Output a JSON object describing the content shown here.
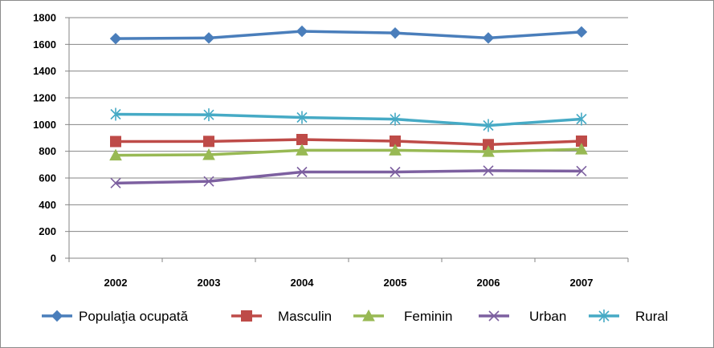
{
  "chart_data": {
    "type": "line",
    "title": "",
    "xlabel": "",
    "ylabel": "",
    "categories": [
      "2002",
      "2003",
      "2004",
      "2005",
      "2006",
      "2007"
    ],
    "ylim": [
      0,
      1800
    ],
    "yticks": [
      0,
      200,
      400,
      600,
      800,
      1000,
      1200,
      1400,
      1600,
      1800
    ],
    "grid": "horizontal",
    "legend_position": "bottom",
    "series": [
      {
        "name": "Populaţia ocupată",
        "values": [
          1643,
          1648,
          1698,
          1685,
          1648,
          1693
        ],
        "color": "#4a7ebb",
        "marker": "diamond"
      },
      {
        "name": "Masculin",
        "values": [
          873,
          874,
          888,
          876,
          850,
          876
        ],
        "color": "#be4b48",
        "marker": "square"
      },
      {
        "name": "Feminin",
        "values": [
          770,
          774,
          808,
          808,
          797,
          815
        ],
        "color": "#98b954",
        "marker": "triangle"
      },
      {
        "name": "Urban",
        "values": [
          562,
          575,
          645,
          645,
          655,
          652
        ],
        "color": "#7d60a0",
        "marker": "x"
      },
      {
        "name": "Rural",
        "values": [
          1077,
          1073,
          1053,
          1040,
          993,
          1041
        ],
        "color": "#46aac5",
        "marker": "star"
      }
    ]
  }
}
